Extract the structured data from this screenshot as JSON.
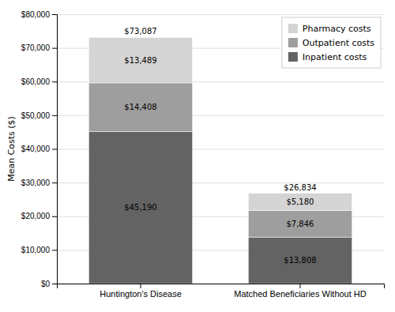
{
  "chart_data": {
    "type": "bar",
    "stacked": true,
    "categories": [
      "Huntington's Disease",
      "Matched Beneficiaries Without HD"
    ],
    "series": [
      {
        "name": "Inpatient costs",
        "color": "#636363",
        "values": [
          45190,
          13808
        ],
        "value_labels": [
          "$45,190",
          "$13,808"
        ]
      },
      {
        "name": "Outpatient costs",
        "color": "#9e9e9e",
        "values": [
          14408,
          7846
        ],
        "value_labels": [
          "$14,408",
          "$7,846"
        ]
      },
      {
        "name": "Pharmacy costs",
        "color": "#d4d4d4",
        "values": [
          13489,
          5180
        ],
        "value_labels": [
          "$13,489",
          "$5,180"
        ]
      }
    ],
    "totals": [
      73087,
      26834
    ],
    "total_labels": [
      "$73,087",
      "$26,834"
    ],
    "data_labels": true,
    "y_label": "Mean Costs ($)",
    "ylim": [
      0,
      80000
    ],
    "yticks": [
      {
        "value": 0,
        "label": "$0"
      },
      {
        "value": 10000,
        "label": "$10,000"
      },
      {
        "value": 20000,
        "label": "$20,000"
      },
      {
        "value": 30000,
        "label": "$30,000"
      },
      {
        "value": 40000,
        "label": "$40,000"
      },
      {
        "value": 50000,
        "label": "$50,000"
      },
      {
        "value": 60000,
        "label": "$60,000"
      },
      {
        "value": 70000,
        "label": "$70,000"
      },
      {
        "value": 80000,
        "label": "$80,000"
      }
    ],
    "grid": true,
    "legend": "upper right"
  }
}
